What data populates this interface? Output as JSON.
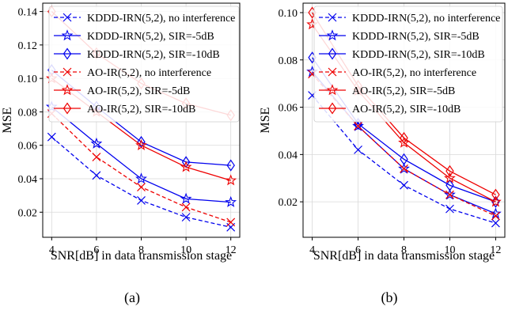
{
  "chart_data": [
    {
      "type": "line",
      "panel": "(a)",
      "xlabel": "SNR[dB] in data transmission stage",
      "ylabel": "MSE",
      "x": [
        4,
        6,
        8,
        10,
        12
      ],
      "xticks": [
        "4",
        "6",
        "8",
        "10",
        "12"
      ],
      "yticks": [
        "0.02",
        "0.04",
        "0.06",
        "0.08",
        "0.10",
        "0.12",
        "0.14"
      ],
      "ytick_values": [
        0.02,
        0.04,
        0.06,
        0.08,
        0.1,
        0.12,
        0.14
      ],
      "xlim": [
        3.6,
        12.4
      ],
      "ylim": [
        0.005,
        0.145
      ],
      "grid": true,
      "legend": "top-left",
      "series": [
        {
          "name": "KDDD-IRN(5,2), no interference",
          "color": "#0000ee",
          "marker": "x",
          "dashed": true,
          "values": [
            0.065,
            0.042,
            0.027,
            0.017,
            0.011
          ]
        },
        {
          "name": "KDDD-IRN(5,2), SIR=-5dB",
          "color": "#0000ee",
          "marker": "star",
          "dashed": false,
          "values": [
            0.083,
            0.061,
            0.04,
            0.028,
            0.026
          ]
        },
        {
          "name": "KDDD-IRN(5,2), SIR=-10dB",
          "color": "#0000ee",
          "marker": "diamond",
          "dashed": false,
          "values": [
            0.105,
            0.083,
            0.062,
            0.05,
            0.048
          ]
        },
        {
          "name": "AO-IR(5,2), no interference",
          "color": "#ee0000",
          "marker": "x",
          "dashed": true,
          "values": [
            0.079,
            0.053,
            0.035,
            0.023,
            0.014
          ]
        },
        {
          "name": "AO-IR(5,2), SIR=-5dB",
          "color": "#ee0000",
          "marker": "star",
          "dashed": false,
          "values": [
            0.1,
            0.08,
            0.06,
            0.047,
            0.039
          ]
        },
        {
          "name": "AO-IR(5,2), SIR=-10dB",
          "color": "#ee0000",
          "marker": "diamond",
          "dashed": false,
          "values": [
            0.14,
            0.115,
            0.097,
            0.085,
            0.078
          ]
        }
      ]
    },
    {
      "type": "line",
      "panel": "(b)",
      "xlabel": "SNR[dB] in data transmission stage",
      "ylabel": "MSE",
      "x": [
        4,
        6,
        8,
        10,
        12
      ],
      "xticks": [
        "4",
        "6",
        "8",
        "10",
        "12"
      ],
      "yticks": [
        "0.02",
        "0.04",
        "0.06",
        "0.08",
        "0.10"
      ],
      "ytick_values": [
        0.02,
        0.04,
        0.06,
        0.08,
        0.1
      ],
      "xlim": [
        3.6,
        12.4
      ],
      "ylim": [
        0.005,
        0.104
      ],
      "grid": true,
      "legend": "top-right",
      "series": [
        {
          "name": "KDDD-IRN(5,2), no interference",
          "color": "#0000ee",
          "marker": "x",
          "dashed": true,
          "values": [
            0.065,
            0.042,
            0.027,
            0.017,
            0.011
          ]
        },
        {
          "name": "KDDD-IRN(5,2), SIR=-5dB",
          "color": "#0000ee",
          "marker": "star",
          "dashed": false,
          "values": [
            0.075,
            0.052,
            0.034,
            0.023,
            0.015
          ]
        },
        {
          "name": "KDDD-IRN(5,2), SIR=-10dB",
          "color": "#0000ee",
          "marker": "diamond",
          "dashed": false,
          "values": [
            0.081,
            0.053,
            0.038,
            0.027,
            0.02
          ]
        },
        {
          "name": "AO-IR(5,2), no interference",
          "color": "#ee0000",
          "marker": "x",
          "dashed": true,
          "values": [
            0.074,
            0.052,
            0.034,
            0.023,
            0.014
          ]
        },
        {
          "name": "AO-IR(5,2), SIR=-5dB",
          "color": "#ee0000",
          "marker": "star",
          "dashed": false,
          "values": [
            0.095,
            0.067,
            0.045,
            0.03,
            0.02
          ]
        },
        {
          "name": "AO-IR(5,2), SIR=-10dB",
          "color": "#ee0000",
          "marker": "diamond",
          "dashed": false,
          "values": [
            0.1,
            0.069,
            0.047,
            0.033,
            0.023
          ]
        }
      ]
    }
  ]
}
